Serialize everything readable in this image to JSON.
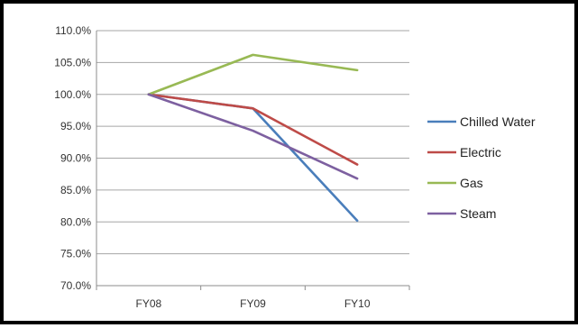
{
  "chart_data": {
    "type": "line",
    "title": "",
    "xlabel": "",
    "ylabel": "",
    "categories": [
      "FY08",
      "FY09",
      "FY10"
    ],
    "ylim": [
      70,
      110
    ],
    "yticks": [
      70,
      75,
      80,
      85,
      90,
      95,
      100,
      105,
      110
    ],
    "ytick_labels": [
      "70.0%",
      "75.0%",
      "80.0%",
      "85.0%",
      "90.0%",
      "95.0%",
      "100.0%",
      "105.0%",
      "110.0%"
    ],
    "grid": true,
    "legend_position": "right",
    "series": [
      {
        "name": "Chilled Water",
        "color": "#4a7ebb",
        "values": [
          100.0,
          97.8,
          80.2
        ]
      },
      {
        "name": "Electric",
        "color": "#be4b48",
        "values": [
          100.0,
          97.8,
          89.0
        ]
      },
      {
        "name": "Gas",
        "color": "#98b954",
        "values": [
          100.0,
          106.2,
          103.8
        ]
      },
      {
        "name": "Steam",
        "color": "#7d60a0",
        "values": [
          100.0,
          94.3,
          86.8
        ]
      }
    ]
  }
}
